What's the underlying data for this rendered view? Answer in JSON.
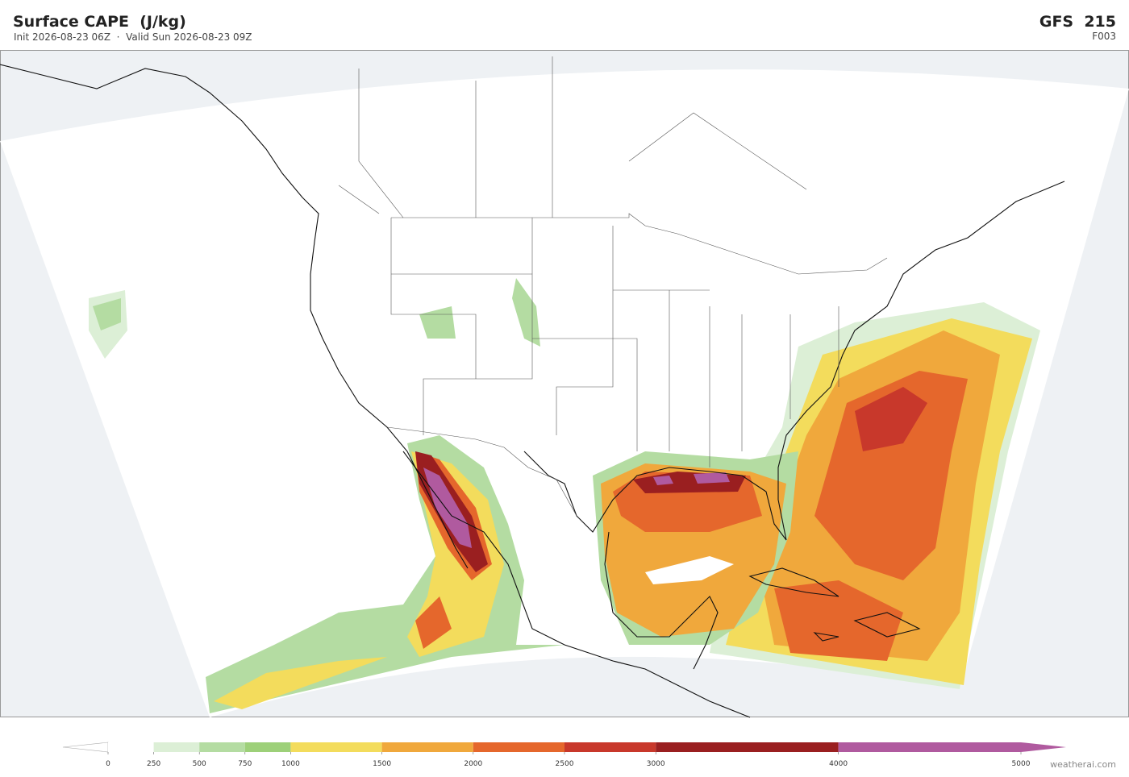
{
  "header": {
    "title": "Surface CAPE  (J/kg)",
    "subtitle": "Init 2026-08-23 06Z  ·  Valid Sun 2026-08-23 09Z",
    "model": "GFS  215",
    "forecast_hour": "F003"
  },
  "colorbar": {
    "lim": [
      0,
      5000
    ],
    "levels": [
      0,
      250,
      500,
      750,
      1000,
      1500,
      2000,
      2500,
      3000,
      4000,
      5000
    ],
    "colors": [
      "#ffffff",
      "#dcefd6",
      "#b4dca2",
      "#9dd079",
      "#f3dc5c",
      "#f0a83c",
      "#e5672c",
      "#c8382b",
      "#9a1f20",
      "#b05a9f"
    ]
  },
  "watermark": "weatherai.com"
}
